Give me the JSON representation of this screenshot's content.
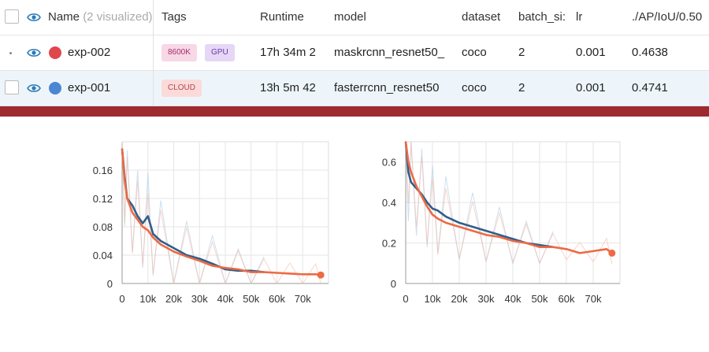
{
  "table": {
    "headers": {
      "name": "Name",
      "name_sub": "(2 visualized)",
      "tags": "Tags",
      "runtime": "Runtime",
      "model": "model",
      "dataset": "dataset",
      "batch_size": "batch_si:",
      "lr": "lr",
      "metric": "./AP/IoU/0.50"
    },
    "rows": [
      {
        "name": "exp-002",
        "color": "#e0474c",
        "tags": [
          "8600K",
          "GPU"
        ],
        "runtime": "17h 34m 2",
        "model": "maskrcnn_resnet50_",
        "dataset": "coco",
        "batch_size": "2",
        "lr": "0.001",
        "metric": "0.4638"
      },
      {
        "name": "exp-001",
        "color": "#4a86d4",
        "tags": [
          "CLOUD"
        ],
        "runtime": "13h 5m 42",
        "model": "fasterrcnn_resnet50",
        "dataset": "coco",
        "batch_size": "2",
        "lr": "0.001",
        "metric": "0.4741"
      }
    ],
    "tag_colors": {
      "8600K": "#f8d7e6",
      "GPU": "#e6d7f6",
      "CLOUD": "#fbdada"
    }
  },
  "chart_data": [
    {
      "type": "line",
      "xticks": [
        "0",
        "10k",
        "20k",
        "30k",
        "40k",
        "50k",
        "60k",
        "70k"
      ],
      "yticks": [
        "0",
        "0.04",
        "0.08",
        "0.12",
        "0.16"
      ],
      "xlim": [
        0,
        80000
      ],
      "ylim": [
        0,
        0.2
      ],
      "grid": true,
      "series": [
        {
          "color": "#2f5f8a",
          "x": [
            0,
            1000,
            2000,
            4000,
            6000,
            8000,
            10000,
            12000,
            15000,
            20000,
            25000,
            30000,
            35000,
            40000,
            45000,
            50000,
            55000
          ],
          "y": [
            0.19,
            0.15,
            0.12,
            0.11,
            0.095,
            0.085,
            0.095,
            0.07,
            0.06,
            0.05,
            0.04,
            0.035,
            0.028,
            0.02,
            0.018,
            0.018,
            0.016
          ]
        },
        {
          "color": "#ec6a44",
          "x": [
            0,
            1000,
            2000,
            4000,
            6000,
            8000,
            10000,
            12000,
            15000,
            20000,
            25000,
            30000,
            35000,
            40000,
            45000,
            50000,
            55000,
            60000,
            65000,
            70000,
            75000,
            77000
          ],
          "y": [
            0.19,
            0.145,
            0.12,
            0.1,
            0.09,
            0.08,
            0.075,
            0.065,
            0.055,
            0.045,
            0.038,
            0.032,
            0.025,
            0.022,
            0.02,
            0.016,
            0.016,
            0.015,
            0.014,
            0.013,
            0.013,
            0.012
          ]
        }
      ]
    },
    {
      "type": "line",
      "xticks": [
        "0",
        "10k",
        "20k",
        "30k",
        "40k",
        "50k",
        "60k",
        "70k"
      ],
      "yticks": [
        "0",
        "0.2",
        "0.4",
        "0.6"
      ],
      "xlim": [
        0,
        80000
      ],
      "ylim": [
        0,
        0.7
      ],
      "grid": true,
      "series": [
        {
          "color": "#2f5f8a",
          "x": [
            0,
            1000,
            2000,
            4000,
            6000,
            8000,
            10000,
            12000,
            15000,
            20000,
            25000,
            30000,
            35000,
            40000,
            45000,
            50000,
            55000
          ],
          "y": [
            0.7,
            0.55,
            0.5,
            0.47,
            0.44,
            0.4,
            0.37,
            0.36,
            0.33,
            0.3,
            0.28,
            0.26,
            0.24,
            0.22,
            0.2,
            0.19,
            0.18
          ]
        },
        {
          "color": "#ec6a44",
          "x": [
            0,
            1000,
            2000,
            4000,
            6000,
            8000,
            10000,
            12000,
            15000,
            20000,
            25000,
            30000,
            35000,
            40000,
            45000,
            50000,
            55000,
            60000,
            65000,
            70000,
            75000,
            77000
          ],
          "y": [
            0.7,
            0.6,
            0.55,
            0.48,
            0.43,
            0.38,
            0.34,
            0.32,
            0.3,
            0.28,
            0.26,
            0.24,
            0.23,
            0.21,
            0.2,
            0.18,
            0.18,
            0.17,
            0.15,
            0.16,
            0.17,
            0.15
          ]
        }
      ]
    }
  ]
}
